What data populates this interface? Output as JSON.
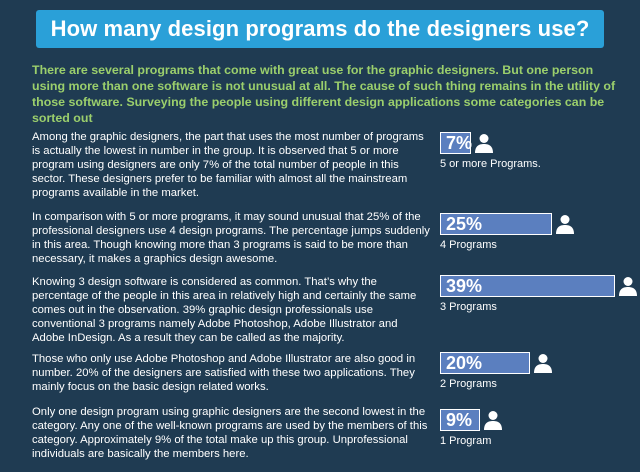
{
  "title": "How many design programs do the designers use?",
  "intro": "There are several programs that come with great use for the graphic designers. But one person using more than one software is not unusual at all. The cause of such thing remains in the utility of those software. Surveying the people using different design applications some categories can be sorted out",
  "sections": [
    {
      "text": "Among the graphic designers, the part that uses the most number of programs is actually the lowest in number in the group. It is observed that 5 or more program using designers are only 7% of the total number of people in this sector. These designers prefer to be familiar with almost all the mainstream programs available in the market.",
      "percent_label": "7%",
      "percent": 7,
      "category": "5 or more Programs."
    },
    {
      "text": "In comparison with 5 or more programs, it may sound unusual that 25% of the professional designers use 4 design programs. The percentage jumps suddenly in this area. Though knowing more than 3 programs is said to be more than necessary, it makes a graphics design awesome.",
      "percent_label": "25%",
      "percent": 25,
      "category": "4 Programs"
    },
    {
      "text": "Knowing 3 design software is considered as common. That’s why the percentage of the people in this area in relatively high and certainly the same comes out in the observation. 39% graphic design professionals use conventional 3 programs namely Adobe Photoshop, Adobe Illustrator and Adobe InDesign. As a result they can be called as the majority.",
      "percent_label": "39%",
      "percent": 39,
      "category": "3 Programs"
    },
    {
      "text": "Those who only use Adobe Photoshop and Adobe Illustrator are also good in number. 20% of the designers are satisfied with these two applications. They mainly focus on the basic design related works.",
      "percent_label": "20%",
      "percent": 20,
      "category": "2 Programs"
    },
    {
      "text": "Only one design program using graphic designers are the second lowest in the category. Any one of the well-known programs are used by the members of this category. Approximately 9% of the total make up this group. Unprofessional individuals are basically the members here.",
      "percent_label": "9%",
      "percent": 9,
      "category": "1 Program"
    }
  ],
  "colors": {
    "background": "#1f3b52",
    "title_bar": "#2aa0d8",
    "intro_text": "#9bcf6c",
    "bar_fill": "#5b7fbf"
  },
  "icons": {
    "person": "user-icon"
  }
}
